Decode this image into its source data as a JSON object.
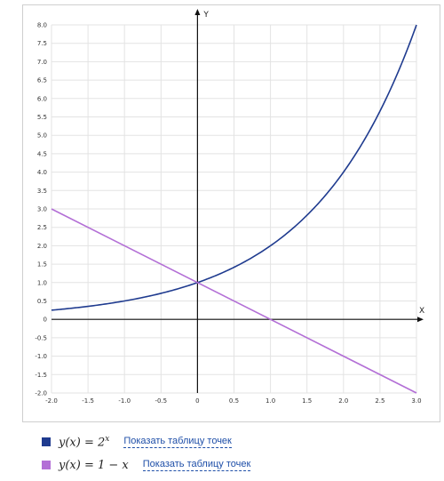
{
  "chart_data": {
    "type": "line",
    "xlim": [
      -2.0,
      3.0
    ],
    "ylim": [
      -2.0,
      8.0
    ],
    "x_ticks": [
      "-2.0",
      "-1.5",
      "-1.0",
      "-0.5",
      "0",
      "0.5",
      "1.0",
      "1.5",
      "2.0",
      "2.5",
      "3.0"
    ],
    "y_ticks": [
      "8.0",
      "7.5",
      "7.0",
      "6.5",
      "6.0",
      "5.5",
      "5.0",
      "4.5",
      "4.0",
      "3.5",
      "3.0",
      "2.5",
      "2.0",
      "1.5",
      "1.0",
      "0.5",
      "0",
      "-0.5",
      "-1.0",
      "-1.5",
      "-2.0"
    ],
    "xlabel": "X",
    "ylabel": "Y",
    "grid": true,
    "series": [
      {
        "name": "y(x) = 2^x",
        "color": "#1f3b8f",
        "x": [
          -2.0,
          -1.5,
          -1.0,
          -0.5,
          0,
          0.5,
          1.0,
          1.5,
          2.0,
          2.5,
          3.0
        ],
        "y": [
          0.25,
          0.354,
          0.5,
          0.707,
          1.0,
          1.414,
          2.0,
          2.828,
          4.0,
          5.657,
          8.0
        ]
      },
      {
        "name": "y(x) = 1 − x",
        "color": "#b36fd6",
        "x": [
          -2.0,
          3.0
        ],
        "y": [
          3.0,
          -2.0
        ]
      }
    ]
  },
  "legend": [
    {
      "color": "#1f3b8f",
      "formula_text": "y(x) = 2",
      "formula_sup": "x",
      "link": "Показать таблицу точек"
    },
    {
      "color": "#b36fd6",
      "formula_text": "y(x) = 1 − x",
      "formula_sup": "",
      "link": "Показать таблицу точек"
    }
  ]
}
